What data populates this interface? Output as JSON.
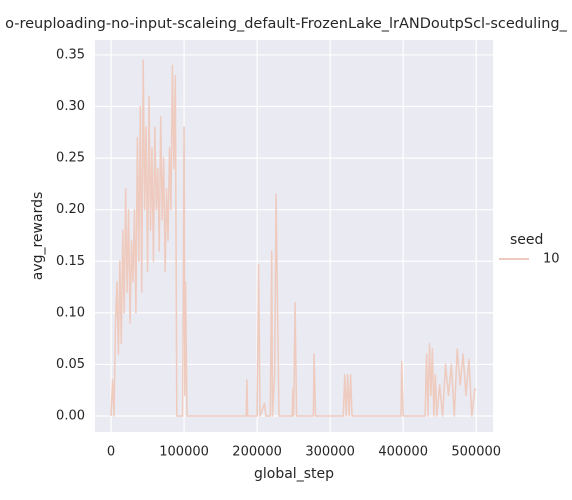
{
  "chart_data": {
    "type": "line",
    "title": "o-reuploading-no-input-scaleing_default-FrozenLake_lrANDoutpScl-sceduling_",
    "xlabel": "global_step",
    "ylabel": "avg_rewards",
    "legend_title": "seed",
    "legend": "right",
    "grid": true,
    "x": [
      0,
      2000,
      4000,
      6000,
      8000,
      10000,
      12000,
      14000,
      16000,
      18000,
      20000,
      22000,
      24000,
      26000,
      28000,
      30000,
      32000,
      34000,
      36000,
      38000,
      40000,
      42000,
      44000,
      46000,
      48000,
      50000,
      52000,
      54000,
      56000,
      58000,
      60000,
      62000,
      64000,
      66000,
      68000,
      70000,
      72000,
      74000,
      76000,
      78000,
      80000,
      82000,
      84000,
      86000,
      88000,
      90000,
      92000,
      98000,
      100000,
      101000,
      102000,
      104000,
      185000,
      186000,
      187000,
      200000,
      202000,
      204000,
      210000,
      212000,
      218000,
      220000,
      221000,
      224000,
      226000,
      228000,
      230000,
      248000,
      249000,
      250000,
      252000,
      254000,
      277000,
      278000,
      280000,
      318000,
      320000,
      322000,
      324000,
      326000,
      328000,
      330000,
      397000,
      398000,
      400000,
      430000,
      432000,
      434000,
      436000,
      438000,
      440000,
      442000,
      444000,
      446000,
      450000,
      454000,
      458000,
      462000,
      466000,
      470000,
      474000,
      478000,
      482000,
      486000,
      490000,
      494000,
      498000,
      500000
    ],
    "series": [
      {
        "name": "10",
        "color": "#eecbbe",
        "values": [
          0,
          0.035,
          0,
          0.09,
          0.13,
          0.06,
          0.15,
          0.07,
          0.18,
          0.1,
          0.22,
          0.12,
          0.2,
          0.09,
          0.17,
          0.13,
          0.2,
          0.1,
          0.27,
          0.15,
          0.3,
          0.12,
          0.345,
          0.2,
          0.28,
          0.14,
          0.31,
          0.18,
          0.26,
          0.15,
          0.28,
          0.2,
          0.24,
          0.16,
          0.29,
          0.19,
          0.25,
          0.14,
          0.22,
          0.17,
          0.26,
          0.2,
          0.34,
          0.24,
          0.33,
          0,
          0,
          0,
          0.28,
          0.02,
          0.13,
          0,
          0,
          0.035,
          0,
          0,
          0.147,
          0,
          0.012,
          0,
          0,
          0.16,
          0,
          0.04,
          0.215,
          0.1,
          0,
          0,
          0.026,
          0,
          0.11,
          0,
          0,
          0.06,
          0,
          0,
          0.04,
          0,
          0.04,
          0,
          0.04,
          0,
          0,
          0.053,
          0,
          0,
          0.06,
          0,
          0.07,
          0.02,
          0.065,
          0,
          0.04,
          0,
          0.03,
          0,
          0.05,
          0.02,
          0.05,
          0,
          0.065,
          0.03,
          0.06,
          0.02,
          0.055,
          0,
          0.026,
          0.026
        ]
      }
    ],
    "xlim": [
      -22000,
      523000
    ],
    "xticks": [
      0,
      100000,
      200000,
      300000,
      400000,
      500000
    ],
    "ylim": [
      -0.0155,
      0.3645
    ],
    "yticks": [
      {
        "value": 0,
        "label": "0.00"
      },
      {
        "value": 0.05,
        "label": "0.05"
      },
      {
        "value": 0.1,
        "label": "0.10"
      },
      {
        "value": 0.15,
        "label": "0.15"
      },
      {
        "value": 0.2,
        "label": "0.20"
      },
      {
        "value": 0.25,
        "label": "0.25"
      },
      {
        "value": 0.3,
        "label": "0.30"
      },
      {
        "value": 0.35,
        "label": "0.35"
      }
    ]
  }
}
